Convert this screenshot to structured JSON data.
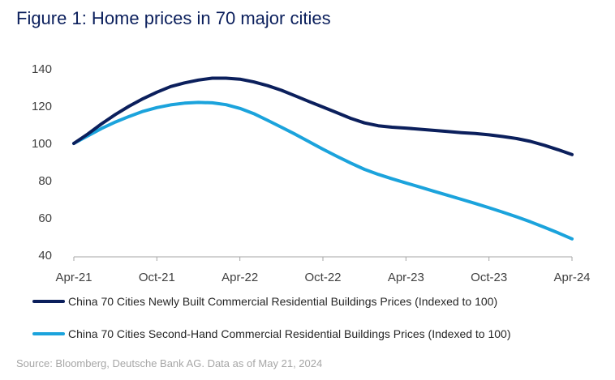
{
  "title": "Figure 1: Home prices in 70 major cities",
  "source": "Source: Bloomberg, Deutsche Bank AG. Data as of May 21, 2024",
  "chart_data": {
    "type": "line",
    "title": "Figure 1: Home prices in 70 major cities",
    "xlabel": "",
    "ylabel": "",
    "ylim": [
      40,
      140
    ],
    "yticks": [
      40,
      60,
      80,
      100,
      120,
      140
    ],
    "grid": false,
    "legend_position": "bottom",
    "x_tick_labels": [
      "Apr-21",
      "Oct-21",
      "Apr-22",
      "Oct-22",
      "Apr-23",
      "Oct-23",
      "Apr-24"
    ],
    "x": [
      0,
      1,
      2,
      3,
      4,
      5,
      6,
      7,
      8,
      9,
      10,
      11,
      12,
      13,
      14,
      15,
      16,
      17,
      18,
      19,
      20,
      21,
      22,
      23,
      24,
      25,
      26,
      27,
      28,
      29,
      30,
      31,
      32,
      33,
      34,
      35,
      36
    ],
    "series": [
      {
        "name": "China 70 Cities Newly Built Commercial Residential Buildings Prices (Indexed to 100)",
        "color": "#0b1f5c",
        "values": [
          100,
          105,
          110.5,
          115.5,
          120,
          124,
          127.5,
          130.5,
          132.5,
          134,
          135,
          135,
          134.5,
          133,
          131,
          128.5,
          125.5,
          122.5,
          119.5,
          116.5,
          113.5,
          111,
          109.5,
          108.7,
          108.2,
          107.6,
          107,
          106.4,
          105.8,
          105.3,
          104.6,
          103.7,
          102.6,
          101.1,
          99,
          96.6,
          94
        ]
      },
      {
        "name": "China 70 Cities Second-Hand Commercial Residential Buildings Prices (Indexed to 100)",
        "color": "#1ba3dc",
        "values": [
          100,
          104,
          108,
          111.5,
          114.5,
          117.2,
          119.2,
          120.7,
          121.6,
          122,
          121.8,
          120.8,
          118.8,
          116,
          112.4,
          108.7,
          104.9,
          100.9,
          96.9,
          93.1,
          89.5,
          86.1,
          83.4,
          81,
          78.8,
          76.6,
          74.4,
          72.2,
          70,
          67.8,
          65.5,
          63.1,
          60.6,
          57.9,
          55,
          52,
          48.8
        ]
      }
    ]
  }
}
